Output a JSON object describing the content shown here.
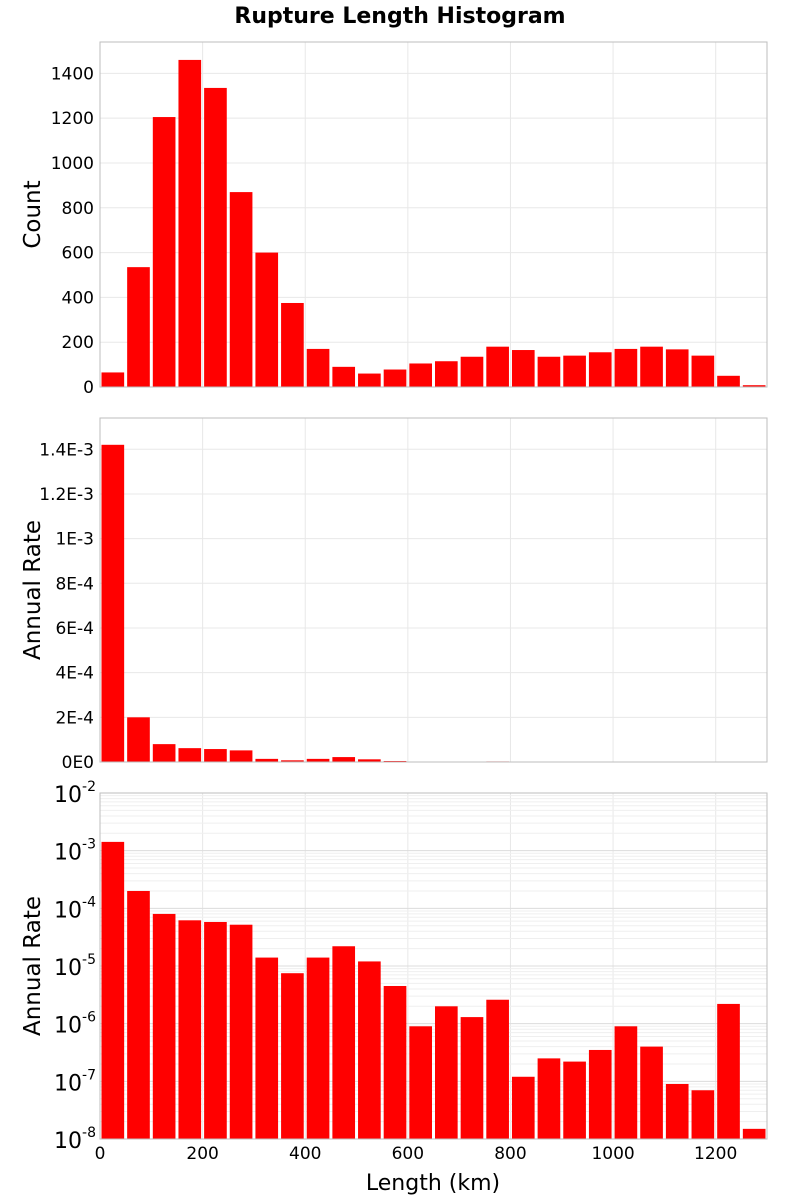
{
  "chart_data": {
    "type": "bar",
    "title": "Rupture Length Histogram",
    "xlabel": "Length (km)",
    "xlim": [
      0,
      1300
    ],
    "xticks": [
      0,
      200,
      400,
      600,
      800,
      1000,
      1200
    ],
    "xtick_labels": [
      "0",
      "200",
      "400",
      "600",
      "800",
      "1000",
      "1200"
    ],
    "bin_width": 50,
    "bin_centers": [
      25,
      75,
      125,
      175,
      225,
      275,
      325,
      375,
      425,
      475,
      525,
      575,
      625,
      675,
      725,
      775,
      825,
      875,
      925,
      975,
      1025,
      1075,
      1125,
      1175,
      1225,
      1275
    ],
    "bar_color": "#ff0000",
    "panels": [
      {
        "name": "count",
        "ylabel": "Count",
        "yscale": "linear",
        "ylim": [
          0,
          1540
        ],
        "yticks": [
          0,
          200,
          400,
          600,
          800,
          1000,
          1200,
          1400
        ],
        "ytick_labels": [
          "0",
          "200",
          "400",
          "600",
          "800",
          "1000",
          "1200",
          "1400"
        ],
        "values": [
          65,
          535,
          1205,
          1460,
          1335,
          870,
          600,
          375,
          170,
          90,
          60,
          78,
          105,
          115,
          135,
          180,
          165,
          135,
          140,
          155,
          170,
          180,
          168,
          140,
          50,
          8
        ]
      },
      {
        "name": "rate_linear",
        "ylabel": "Annual Rate",
        "yscale": "linear",
        "ylim": [
          0,
          0.00154
        ],
        "yticks": [
          0,
          0.0002,
          0.0004,
          0.0006,
          0.0008,
          0.001,
          0.0012,
          0.0014
        ],
        "ytick_labels": [
          "0E0",
          "2E-4",
          "4E-4",
          "6E-4",
          "8E-4",
          "1E-3",
          "1.2E-3",
          "1.4E-3"
        ],
        "values": [
          0.00142,
          0.0002,
          8e-05,
          6.2e-05,
          5.8e-05,
          5.2e-05,
          1.4e-05,
          7.5e-06,
          1.4e-05,
          2.2e-05,
          1.2e-05,
          4.5e-06,
          9e-07,
          2e-06,
          1.3e-06,
          2.6e-06,
          1.2e-07,
          2.5e-07,
          2.2e-07,
          3.5e-07,
          9e-07,
          4e-07,
          9e-08,
          7e-08,
          2.2e-06,
          1.5e-08
        ]
      },
      {
        "name": "rate_log",
        "ylabel": "Annual Rate",
        "yscale": "log",
        "ylim": [
          1e-08,
          0.01
        ],
        "ytick_exponents": [
          "-8",
          "-7",
          "-6",
          "-5",
          "-4",
          "-3",
          "-2"
        ],
        "ytick_base": "10",
        "values": [
          0.00142,
          0.0002,
          8e-05,
          6.2e-05,
          5.8e-05,
          5.2e-05,
          1.4e-05,
          7.5e-06,
          1.4e-05,
          2.2e-05,
          1.2e-05,
          4.5e-06,
          9e-07,
          2e-06,
          1.3e-06,
          2.6e-06,
          1.2e-07,
          2.5e-07,
          2.2e-07,
          3.5e-07,
          9e-07,
          4e-07,
          9e-08,
          7e-08,
          2.2e-06,
          1.5e-08
        ]
      }
    ]
  }
}
